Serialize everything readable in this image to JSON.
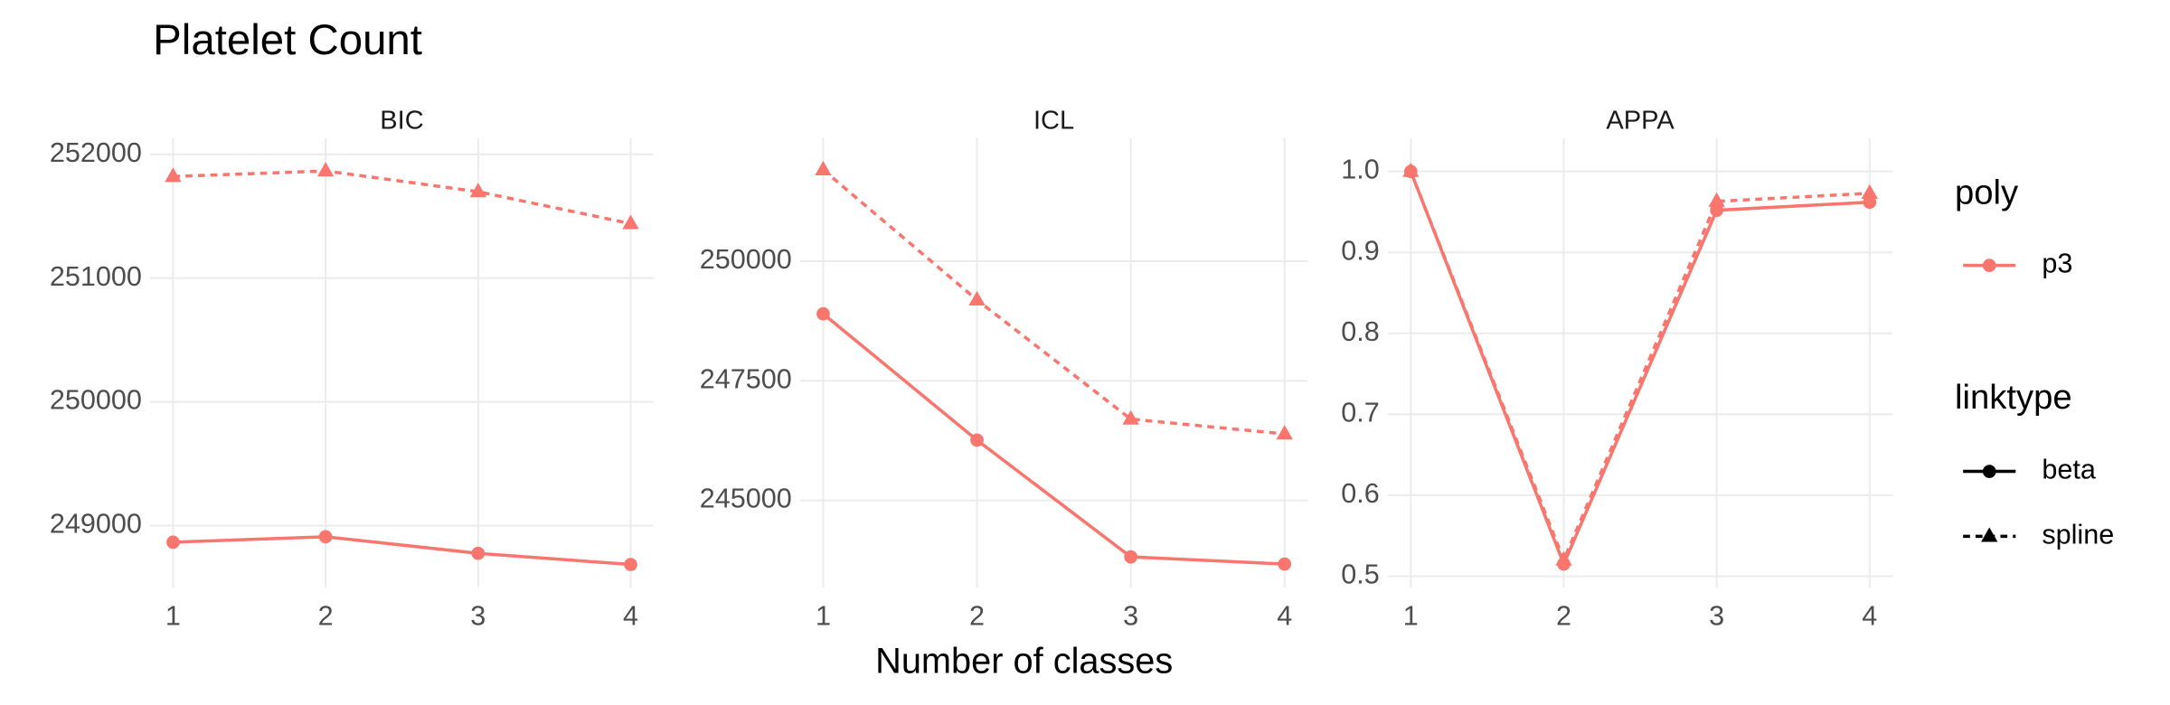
{
  "chart_data": {
    "type": "line",
    "title": "Platelet Count",
    "x_label": "Number of classes",
    "legends": [
      {
        "title": "poly",
        "labels": [
          "p3"
        ],
        "color": "#f8766d"
      },
      {
        "title": "linktype"
      }
    ],
    "panels": [
      {
        "title": "BIC",
        "x": [
          1,
          2,
          3,
          4
        ],
        "xlim": [
          0.85,
          4.15
        ],
        "xticks": [
          1,
          2,
          3,
          4
        ],
        "ylim": [
          248500,
          252130
        ],
        "yticks": [
          249000,
          250000,
          251000,
          252000
        ],
        "grid": true,
        "series": [
          {
            "name": "beta",
            "color": "#f8766d",
            "linetype": "solid",
            "marker": "circle",
            "values": [
              248866,
              248910,
              248776,
              248686
            ]
          },
          {
            "name": "spline",
            "color": "#f8766d",
            "linetype": "dashed",
            "marker": "triangle",
            "values": [
              251821,
              251866,
              251698,
              251440
            ]
          }
        ]
      },
      {
        "title": "ICL",
        "x": [
          1,
          2,
          3,
          4
        ],
        "xlim": [
          0.85,
          4.15
        ],
        "xticks": [
          1,
          2,
          3,
          4
        ],
        "ylim": [
          243180,
          252570
        ],
        "yticks": [
          245000,
          247500,
          250000
        ],
        "grid": true,
        "series": [
          {
            "name": "beta",
            "color": "#f8766d",
            "linetype": "solid",
            "marker": "circle",
            "values": [
              248900,
              246260,
              243820,
              243670
            ]
          },
          {
            "name": "spline",
            "color": "#f8766d",
            "linetype": "dashed",
            "marker": "triangle",
            "values": [
              251910,
              249190,
              246700,
              246390
            ]
          }
        ]
      },
      {
        "title": "APPA",
        "x": [
          1,
          2,
          3,
          4
        ],
        "xlim": [
          0.85,
          4.15
        ],
        "xticks": [
          1,
          2,
          3,
          4
        ],
        "ylim": [
          0.486,
          1.041
        ],
        "yticks": [
          0.5,
          0.6,
          0.7,
          0.8,
          0.9,
          {
            "value": 1,
            "label": "1.0"
          }
        ],
        "grid": true,
        "series": [
          {
            "name": "beta",
            "color": "#f8766d",
            "linetype": "solid",
            "marker": "circle",
            "values": [
              1.0,
              0.515,
              0.952,
              0.962
            ]
          },
          {
            "name": "spline",
            "color": "#f8766d",
            "linetype": "dashed",
            "marker": "triangle",
            "values": [
              1.0,
              0.52,
              0.963,
              0.973
            ]
          }
        ]
      }
    ]
  }
}
